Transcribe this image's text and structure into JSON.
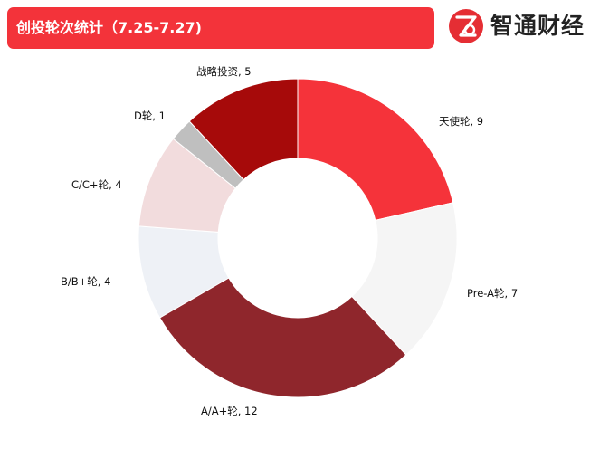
{
  "header": {
    "title": "创投轮次统计（7.25-7.27)",
    "logo_text": "智通财经",
    "logo_icon": "zhitong-logo-icon",
    "accent_color": "#f3333a"
  },
  "chart_data": {
    "type": "pie",
    "style": "donut",
    "title": "创投轮次统计（7.25-7.27)",
    "slices": [
      {
        "label": "天使轮, 9",
        "value": 9,
        "color": "#f5333a"
      },
      {
        "label": "Pre-A轮, 7",
        "value": 7,
        "color": "#f5f5f5"
      },
      {
        "label": "A/A+轮, 12",
        "value": 12,
        "color": "#8f262c"
      },
      {
        "label": "B/B+轮, 4",
        "value": 4,
        "color": "#eef1f6"
      },
      {
        "label": "C/C+轮, 4",
        "value": 4,
        "color": "#f2dcdd"
      },
      {
        "label": "D轮, 1",
        "value": 1,
        "color": "#bfbfbf"
      },
      {
        "label": "战略投资, 5",
        "value": 5,
        "color": "#a60a0a"
      }
    ],
    "legend": "none"
  }
}
